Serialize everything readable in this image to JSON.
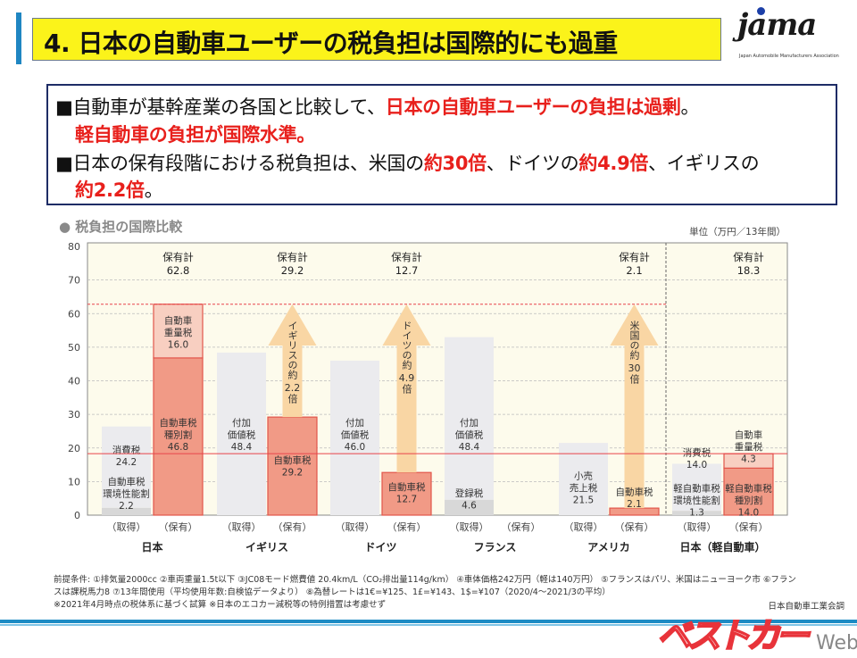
{
  "header": {
    "title": "4. 日本の自動車ユーザーの税負担は国際的にも過重",
    "logo_text": "jama",
    "logo_subtext": "Japan Automobile Manufacturers Association"
  },
  "summary": {
    "line1_black": "■自動車が基幹産業の各国と比較して、",
    "line1_red": "日本の自動車ユーザーの負担は過剰",
    "line1_end": "。",
    "line2_red": "軽自動車の負担が国際水準。",
    "line3_a": "■日本の保有段階における税負担は、米国の",
    "line3_b": "約30倍",
    "line3_c": "、ドイツの",
    "line3_d": "約4.9倍",
    "line3_e": "、イギリスの",
    "line4_red": "約2.2倍",
    "line4_end": "。"
  },
  "chart_data": {
    "type": "bar",
    "stacked": true,
    "title": "● 税負担の国際比較",
    "unit": "単位（万円／13年間）",
    "ylim": [
      0,
      80
    ],
    "yticks": [
      0,
      10,
      20,
      30,
      40,
      50,
      60,
      70,
      80
    ],
    "grid": true,
    "colors": {
      "acq": "#ebebee",
      "acq_small": "#d8d8d8",
      "hold": "#f19a86",
      "hold_upper": "#f8cfc1",
      "hold_border": "#e2554a",
      "arrow": "#f9d6a4",
      "plot_bg": "#fdfbec",
      "ref_line": "#e8434a"
    },
    "reference_lines": [
      {
        "value": 62.8,
        "style": "dashed"
      },
      {
        "value": 18.3,
        "style": "solid"
      }
    ],
    "total_label": "保有計",
    "groups": [
      {
        "country": "日本",
        "bars": [
          {
            "label": "（取得）",
            "segments": [
              {
                "value": 2.2,
                "lines": [
                  "自動車税",
                  "環境性能割",
                  "2.2"
                ]
              },
              {
                "value": 24.2,
                "lines": [
                  "消費税",
                  "24.2"
                ]
              }
            ]
          },
          {
            "label": "（保有）",
            "total": "62.8",
            "segments": [
              {
                "value": 46.8,
                "lines": [
                  "自動車税",
                  "種別割",
                  "46.8"
                ]
              },
              {
                "value": 16.0,
                "lines": [
                  "自動車",
                  "重量税",
                  "16.0"
                ]
              }
            ]
          }
        ]
      },
      {
        "country": "イギリス",
        "bars": [
          {
            "label": "（取得）",
            "segments": [
              {
                "value": 48.4,
                "lines": [
                  "付加",
                  "価値税",
                  "48.4"
                ]
              }
            ]
          },
          {
            "label": "（保有）",
            "total": "29.2",
            "segments": [
              {
                "value": 29.2,
                "lines": [
                  "自動車税",
                  "29.2"
                ]
              }
            ],
            "arrow": [
              "イギリスの約",
              "2.2",
              "倍"
            ]
          }
        ]
      },
      {
        "country": "ドイツ",
        "bars": [
          {
            "label": "（取得）",
            "segments": [
              {
                "value": 46.0,
                "lines": [
                  "付加",
                  "価値税",
                  "46.0"
                ]
              }
            ]
          },
          {
            "label": "（保有）",
            "total": "12.7",
            "segments": [
              {
                "value": 12.7,
                "lines": [
                  "自動車税",
                  "12.7"
                ]
              }
            ],
            "arrow": [
              "ドイツの約",
              "4.9",
              "倍"
            ]
          }
        ]
      },
      {
        "country": "フランス",
        "bars": [
          {
            "label": "（取得）",
            "segments": [
              {
                "value": 4.6,
                "lines": [
                  "登録税",
                  "4.6"
                ]
              },
              {
                "value": 48.4,
                "lines": [
                  "付加",
                  "価値税",
                  "48.4"
                ]
              }
            ]
          },
          {
            "label": "（保有）",
            "segments": []
          }
        ]
      },
      {
        "country": "アメリカ",
        "bars": [
          {
            "label": "（取得）",
            "segments": [
              {
                "value": 21.5,
                "lines": [
                  "小売",
                  "売上税",
                  "21.5"
                ]
              }
            ]
          },
          {
            "label": "（保有）",
            "total": "2.1",
            "segments": [
              {
                "value": 2.1,
                "lines": [
                  "自動車税",
                  "2.1"
                ]
              }
            ],
            "arrow": [
              "米国の約",
              "30",
              "倍"
            ]
          }
        ]
      },
      {
        "country": "日本（軽自動車）",
        "bars": [
          {
            "label": "（取得）",
            "segments": [
              {
                "value": 1.3,
                "lines": [
                  "軽自動車税",
                  "環境性能割",
                  "1.3"
                ]
              },
              {
                "value": 14.0,
                "lines": [
                  "消費税",
                  "14.0"
                ]
              }
            ]
          },
          {
            "label": "（保有）",
            "total": "18.3",
            "segments": [
              {
                "value": 14.0,
                "lines": [
                  "軽自動車税",
                  "種別割",
                  "14.0"
                ]
              },
              {
                "value": 4.3,
                "lines": [
                  "自動車",
                  "重量税",
                  "4.3"
                ]
              }
            ]
          }
        ]
      }
    ]
  },
  "footnotes": {
    "line1": "前提条件: ①排気量2000cc ②車両重量1.5t以下 ③JC08モード燃費値 20.4km/L（CO₂排出量114g/km） ④車体価格242万円（軽は140万円） ⑤フランスはパリ、米国はニューヨーク市 ⑥フラン",
    "line2": "スは課税馬力8 ⑦13年間使用（平均使用年数:自検協データより） ⑧為替レートは1€=¥125、1£=¥143、1$=¥107（2020/4～2021/3の平均）",
    "line3": "※2021年4月時点の税体系に基づく試算 ※日本のエコカー減税等の特例措置は考慮せず",
    "source": "日本自動車工業会調"
  },
  "watermark": {
    "main": "ベストカー",
    "sub": "Web"
  }
}
